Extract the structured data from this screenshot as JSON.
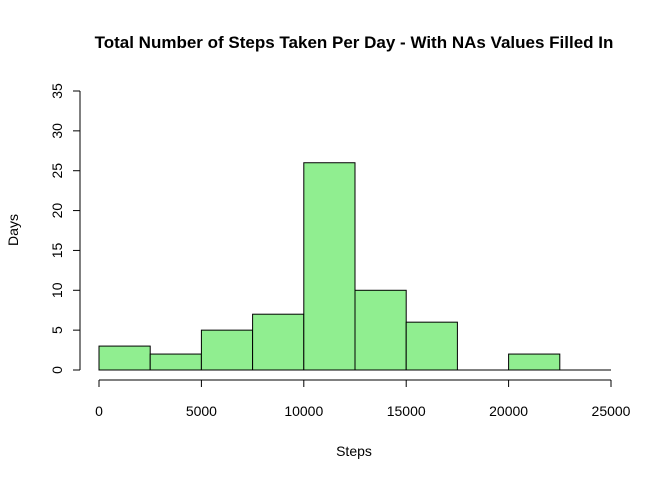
{
  "chart_data": {
    "type": "bar",
    "title": "Total Number of Steps Taken Per Day - With NAs Values Filled In",
    "xlabel": "Steps",
    "ylabel": "Days",
    "bins": [
      {
        "from": 0,
        "to": 2500,
        "value": 3
      },
      {
        "from": 2500,
        "to": 5000,
        "value": 2
      },
      {
        "from": 5000,
        "to": 7500,
        "value": 5
      },
      {
        "from": 7500,
        "to": 10000,
        "value": 7
      },
      {
        "from": 10000,
        "to": 12500,
        "value": 26
      },
      {
        "from": 12500,
        "to": 15000,
        "value": 10
      },
      {
        "from": 15000,
        "to": 17500,
        "value": 6
      },
      {
        "from": 17500,
        "to": 20000,
        "value": 0
      },
      {
        "from": 20000,
        "to": 22500,
        "value": 2
      },
      {
        "from": 22500,
        "to": 25000,
        "value": 0
      }
    ],
    "xlim": [
      0,
      25000
    ],
    "ylim": [
      0,
      35
    ],
    "x_ticks": [
      "0",
      "5000",
      "10000",
      "15000",
      "20000",
      "25000"
    ],
    "y_ticks": [
      "0",
      "5",
      "10",
      "15",
      "20",
      "25",
      "30",
      "35"
    ],
    "bar_color": "#90EE90",
    "grid": false
  }
}
